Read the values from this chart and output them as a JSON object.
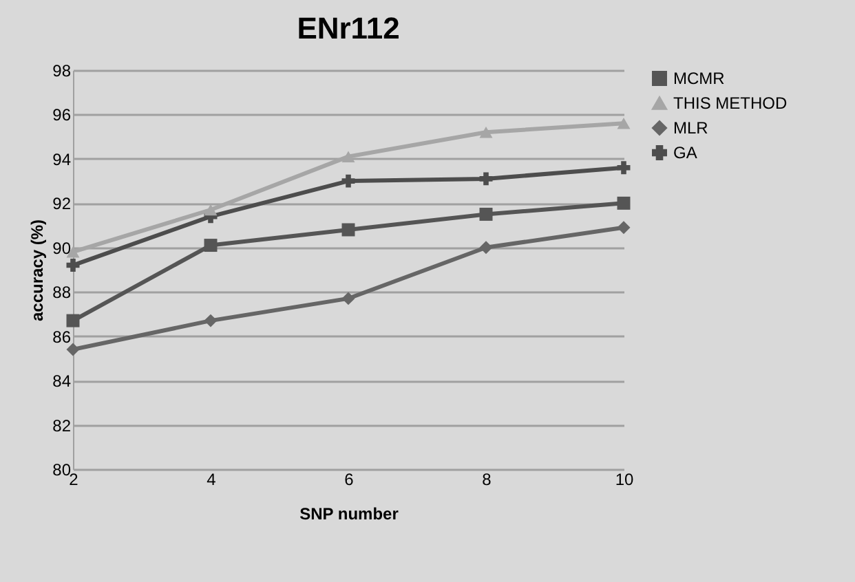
{
  "chart_data": {
    "type": "line",
    "title": "ENr112",
    "xlabel": "SNP number",
    "ylabel": "accuracy (%)",
    "x": [
      2,
      4,
      6,
      8,
      10
    ],
    "xlim": [
      2,
      10
    ],
    "xticks": [
      2,
      4,
      6,
      8,
      10
    ],
    "ylim": [
      80,
      98
    ],
    "yticks": [
      80,
      82,
      84,
      86,
      88,
      90,
      92,
      94,
      96,
      98
    ],
    "grid": "y",
    "legend": "right",
    "series": [
      {
        "name": "MCMR",
        "color": "#555555",
        "marker": "square",
        "values": [
          86.7,
          90.1,
          90.8,
          91.5,
          92.0
        ]
      },
      {
        "name": "THIS METHOD",
        "color": "#a6a6a6",
        "marker": "triangle",
        "values": [
          89.8,
          91.7,
          94.1,
          95.2,
          95.6
        ]
      },
      {
        "name": "MLR",
        "color": "#666666",
        "marker": "diamond",
        "values": [
          85.4,
          86.7,
          87.7,
          90.0,
          90.9
        ]
      },
      {
        "name": "GA",
        "color": "#4d4d4d",
        "marker": "cross",
        "values": [
          89.2,
          91.4,
          93.0,
          93.1,
          93.6
        ]
      }
    ]
  }
}
